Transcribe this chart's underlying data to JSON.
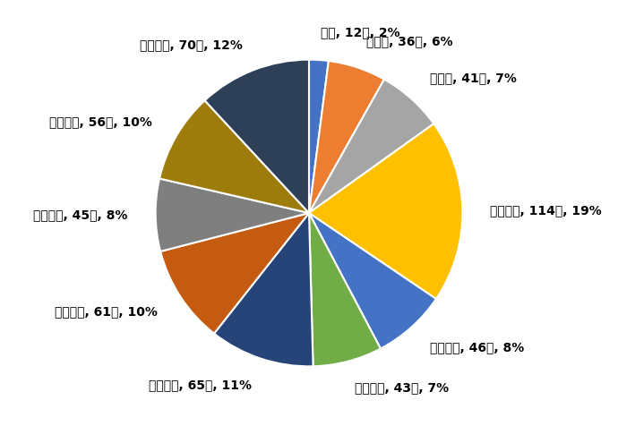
{
  "labels": [
    "０歳",
    "１歳～",
    "５歳～",
    "１０歳～",
    "２０歳～",
    "３０歳～",
    "４０歳～",
    "５０歳～",
    "６０歳～",
    "７０歳～",
    "８０歳～"
  ],
  "counts": [
    12,
    36,
    41,
    114,
    46,
    43,
    65,
    61,
    45,
    56,
    70
  ],
  "percentages": [
    2,
    6,
    7,
    19,
    8,
    7,
    11,
    10,
    8,
    10,
    12
  ],
  "colors": [
    "#4472C4",
    "#ED7D31",
    "#A5A5A5",
    "#FFC000",
    "#4472C4",
    "#70AD47",
    "#264478",
    "#C55A11",
    "#7F7F7F",
    "#9E7C0C",
    "#2E4057"
  ],
  "background_color": "#FFFFFF",
  "label_fontsize": 10,
  "startangle": 90,
  "labeldistance": 1.18,
  "wedge_linewidth": 1.5,
  "wedge_edgecolor": "#FFFFFF"
}
